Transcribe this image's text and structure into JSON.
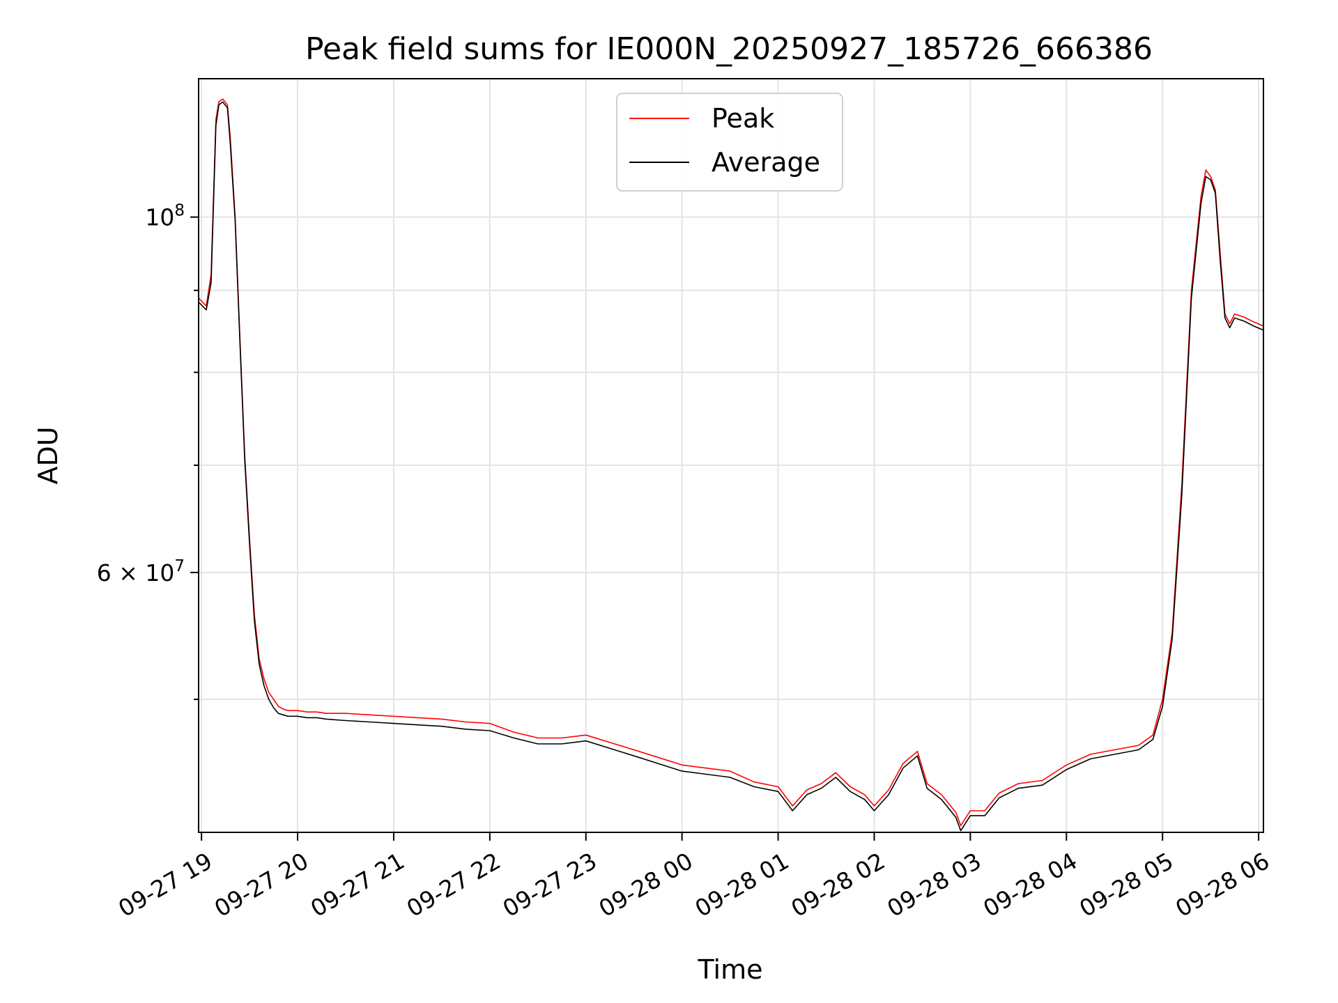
{
  "chart_data": {
    "type": "line",
    "title": "Peak field sums for IE000N_20250927_185726_666386",
    "xlabel": "Time",
    "ylabel": "ADU",
    "yscale": "log",
    "ylim": [
      41300000,
      122000000
    ],
    "xlim_hours": [
      -0.03,
      11.05
    ],
    "x_ticks": [
      {
        "h": 0,
        "label": "09-27 19"
      },
      {
        "h": 1,
        "label": "09-27 20"
      },
      {
        "h": 2,
        "label": "09-27 21"
      },
      {
        "h": 3,
        "label": "09-27 22"
      },
      {
        "h": 4,
        "label": "09-27 23"
      },
      {
        "h": 5,
        "label": "09-28 00"
      },
      {
        "h": 6,
        "label": "09-28 01"
      },
      {
        "h": 7,
        "label": "09-28 02"
      },
      {
        "h": 8,
        "label": "09-28 03"
      },
      {
        "h": 9,
        "label": "09-28 04"
      },
      {
        "h": 10,
        "label": "09-28 05"
      },
      {
        "h": 11,
        "label": "09-28 06"
      }
    ],
    "y_major_ticks": [
      {
        "value": 100000000,
        "base": "10",
        "exp": "8"
      },
      {
        "value": 60000000,
        "mant": "6",
        "base": "10",
        "exp": "7"
      }
    ],
    "y_minor_ticks": [
      50000000,
      70000000,
      80000000,
      90000000
    ],
    "grid": true,
    "legend_position": "upper-center",
    "series": [
      {
        "name": "Peak",
        "color": "#ff0000",
        "x": [
          -0.03,
          0.05,
          0.1,
          0.15,
          0.18,
          0.22,
          0.27,
          0.3,
          0.35,
          0.4,
          0.45,
          0.5,
          0.55,
          0.6,
          0.65,
          0.7,
          0.75,
          0.8,
          0.85,
          0.9,
          0.95,
          1.0,
          1.1,
          1.2,
          1.3,
          1.5,
          1.75,
          2.0,
          2.25,
          2.5,
          2.75,
          3.0,
          3.25,
          3.5,
          3.75,
          4.0,
          4.25,
          4.5,
          4.75,
          5.0,
          5.25,
          5.5,
          5.75,
          6.0,
          6.15,
          6.3,
          6.45,
          6.6,
          6.75,
          6.9,
          7.0,
          7.15,
          7.3,
          7.45,
          7.55,
          7.7,
          7.85,
          7.9,
          8.0,
          8.15,
          8.3,
          8.5,
          8.75,
          9.0,
          9.25,
          9.5,
          9.75,
          9.9,
          10.0,
          10.1,
          10.2,
          10.3,
          10.4,
          10.45,
          10.5,
          10.55,
          10.6,
          10.65,
          10.7,
          10.75,
          10.85,
          10.95,
          11.05
        ],
        "values": [
          89000000,
          88000000,
          92000000,
          115000000,
          118000000,
          118500000,
          117500000,
          112000000,
          100000000,
          84000000,
          71000000,
          63000000,
          56500000,
          53000000,
          51500000,
          50500000,
          50000000,
          49500000,
          49300000,
          49200000,
          49200000,
          49200000,
          49100000,
          49100000,
          49000000,
          49000000,
          48900000,
          48800000,
          48700000,
          48600000,
          48400000,
          48300000,
          47700000,
          47300000,
          47300000,
          47500000,
          47000000,
          46500000,
          46000000,
          45500000,
          45300000,
          45100000,
          44400000,
          44100000,
          42900000,
          43900000,
          44300000,
          45000000,
          44100000,
          43600000,
          42900000,
          43900000,
          45600000,
          46400000,
          44300000,
          43600000,
          42500000,
          41700000,
          42600000,
          42600000,
          43700000,
          44300000,
          44500000,
          45500000,
          46200000,
          46500000,
          46800000,
          47500000,
          50000000,
          55000000,
          68000000,
          90000000,
          103000000,
          107000000,
          106000000,
          104000000,
          95000000,
          87000000,
          85800000,
          87000000,
          86600000,
          86000000,
          85500000
        ]
      },
      {
        "name": "Average",
        "color": "#000000",
        "x": [
          -0.03,
          0.05,
          0.1,
          0.15,
          0.18,
          0.22,
          0.27,
          0.3,
          0.35,
          0.4,
          0.45,
          0.5,
          0.55,
          0.6,
          0.65,
          0.7,
          0.75,
          0.8,
          0.85,
          0.9,
          0.95,
          1.0,
          1.1,
          1.2,
          1.3,
          1.5,
          1.75,
          2.0,
          2.25,
          2.5,
          2.75,
          3.0,
          3.25,
          3.5,
          3.75,
          4.0,
          4.25,
          4.5,
          4.75,
          5.0,
          5.25,
          5.5,
          5.75,
          6.0,
          6.15,
          6.3,
          6.45,
          6.6,
          6.75,
          6.9,
          7.0,
          7.15,
          7.3,
          7.45,
          7.55,
          7.7,
          7.85,
          7.9,
          8.0,
          8.15,
          8.3,
          8.5,
          8.75,
          9.0,
          9.25,
          9.5,
          9.75,
          9.9,
          10.0,
          10.1,
          10.2,
          10.3,
          10.4,
          10.45,
          10.5,
          10.55,
          10.6,
          10.65,
          10.7,
          10.75,
          10.85,
          10.95,
          11.05
        ],
        "values": [
          88500000,
          87500000,
          91000000,
          114000000,
          117500000,
          118000000,
          117000000,
          111000000,
          99500000,
          83500000,
          70500000,
          62500000,
          56000000,
          52600000,
          51000000,
          50000000,
          49400000,
          49000000,
          48900000,
          48800000,
          48800000,
          48800000,
          48700000,
          48700000,
          48600000,
          48500000,
          48400000,
          48300000,
          48200000,
          48100000,
          47900000,
          47800000,
          47300000,
          46900000,
          46900000,
          47100000,
          46600000,
          46100000,
          45600000,
          45100000,
          44900000,
          44700000,
          44100000,
          43800000,
          42600000,
          43600000,
          44000000,
          44700000,
          43800000,
          43300000,
          42600000,
          43600000,
          45300000,
          46100000,
          44000000,
          43300000,
          42200000,
          41400000,
          42300000,
          42300000,
          43400000,
          44000000,
          44200000,
          45200000,
          45900000,
          46200000,
          46500000,
          47200000,
          49500000,
          54500000,
          67000000,
          89000000,
          102000000,
          106000000,
          105500000,
          103500000,
          94000000,
          86500000,
          85300000,
          86500000,
          86100000,
          85500000,
          85000000
        ]
      }
    ]
  }
}
